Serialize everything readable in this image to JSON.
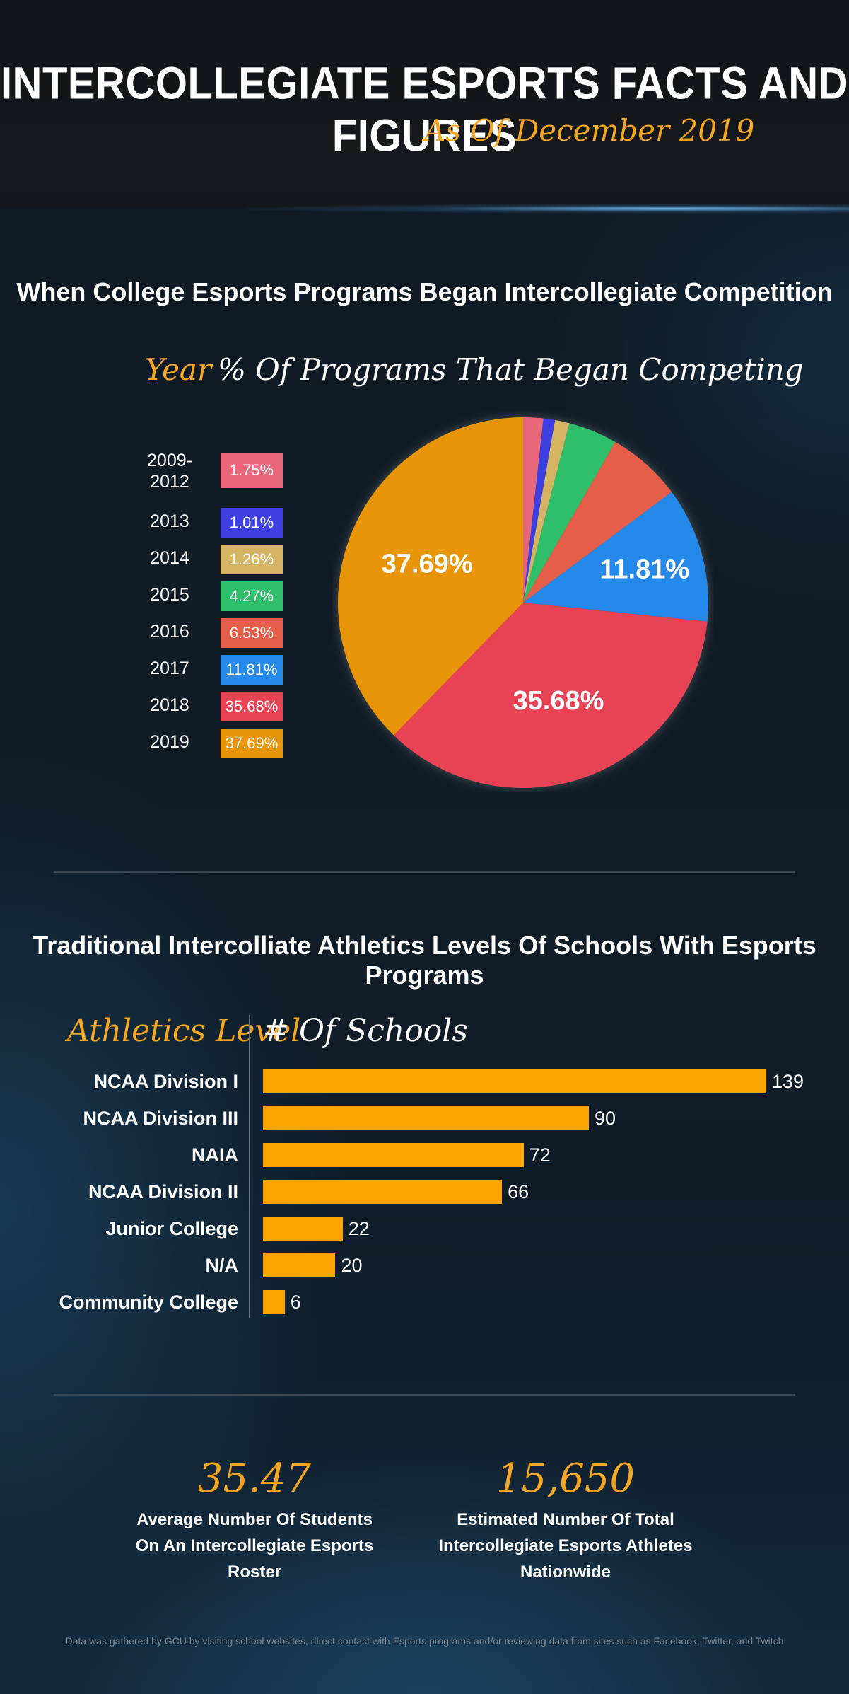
{
  "header": {
    "title": "INTERCOLLEGIATE ESPORTS FACTS AND FIGURES",
    "subtitle": "As Of December 2019"
  },
  "pie_section": {
    "title": "When College Esports Programs Began Intercollegiate Competition",
    "year_heading": "Year",
    "pct_heading": "% Of Programs That Began Competing"
  },
  "bar_section": {
    "title": "Traditional Intercolliate Athletics Levels Of Schools With Esports Programs",
    "level_heading": "Athletics Level",
    "count_heading": "# Of Schools"
  },
  "chart_data": [
    {
      "type": "pie",
      "title": "When College Esports Programs Began Intercollegiate Competition",
      "categories": [
        "2009-\n2012",
        "2013",
        "2014",
        "2015",
        "2016",
        "2017",
        "2018",
        "2019"
      ],
      "values": [
        1.75,
        1.01,
        1.26,
        4.27,
        6.53,
        11.81,
        35.68,
        37.69
      ],
      "value_labels": [
        "1.75%",
        "1.01%",
        "1.26%",
        "4.27%",
        "6.53%",
        "11.81%",
        "35.68%",
        "37.69%"
      ],
      "colors": [
        "#e8677a",
        "#3d3fe0",
        "#d4b463",
        "#2fbf6a",
        "#e55e4a",
        "#2489e8",
        "#e84355",
        "#e8950a"
      ],
      "slice_label_min_value": 10,
      "legend_placement": "left"
    },
    {
      "type": "bar",
      "orientation": "horizontal",
      "title": "Traditional Intercolliate Athletics Levels Of Schools With Esports Programs",
      "categories": [
        "NCAA Division I",
        "NCAA Division III",
        "NAIA",
        "NCAA Division II",
        "Junior College",
        "N/A",
        "Community College"
      ],
      "values": [
        139,
        90,
        72,
        66,
        22,
        20,
        6
      ],
      "xlim": [
        0,
        139
      ],
      "bar_color": "#fba400",
      "grid": false
    }
  ],
  "stats": [
    {
      "value": "35.47",
      "label_line1": "Average Number Of Students",
      "label_line2": "On An Intercollegiate Esports Roster"
    },
    {
      "value": "15,650",
      "label_line1": "Estimated Number Of Total",
      "label_line2": "Intercollegiate Esports Athletes Nationwide"
    }
  ],
  "footnote": "Data was gathered by GCU by visiting school websites, direct contact with Esports programs and/or reviewing data from sites such as Facebook, Twitter, and Twitch"
}
